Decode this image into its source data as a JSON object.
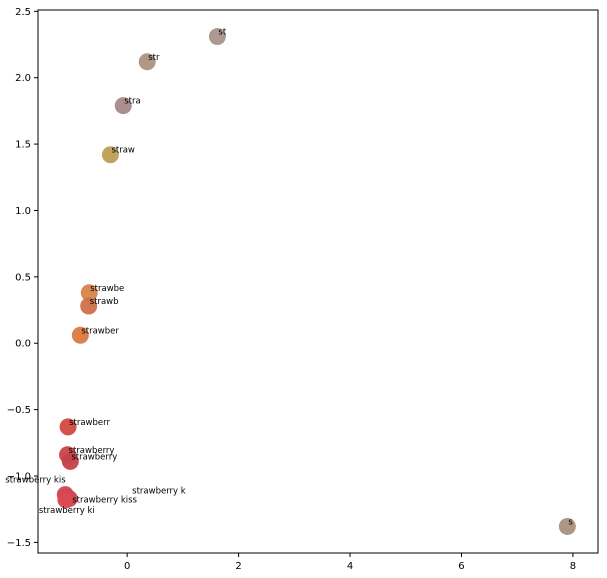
{
  "chart_data": {
    "type": "scatter",
    "title": "",
    "xlabel": "",
    "ylabel": "",
    "xlim": [
      -1.6,
      8.45
    ],
    "ylim": [
      -1.58,
      2.51
    ],
    "xticks": [
      0,
      2,
      4,
      6,
      8
    ],
    "yticks": [
      -1.5,
      -1.0,
      -0.5,
      0.0,
      0.5,
      1.0,
      1.5,
      2.0,
      2.5
    ],
    "xtick_labels": [
      "0",
      "2",
      "4",
      "6",
      "8"
    ],
    "ytick_labels": [
      "−1.5",
      "−1.0",
      "−0.5",
      "0.0",
      "0.5",
      "1.0",
      "1.5",
      "2.0",
      "2.5"
    ],
    "grid": false,
    "points": [
      {
        "label": "s",
        "x": 7.9,
        "y": -1.38,
        "color": "#a89080"
      },
      {
        "label": "st",
        "x": 1.62,
        "y": 2.31,
        "color": "#a8948a"
      },
      {
        "label": "str",
        "x": 0.36,
        "y": 2.12,
        "color": "#ac9182"
      },
      {
        "label": "stra",
        "x": -0.07,
        "y": 1.79,
        "color": "#a6898a"
      },
      {
        "label": "straw",
        "x": -0.3,
        "y": 1.42,
        "color": "#bf9e54"
      },
      {
        "label": "strawbe",
        "x": -0.68,
        "y": 0.38,
        "color": "#d7844a"
      },
      {
        "label": "strawb",
        "x": -0.69,
        "y": 0.28,
        "color": "#d0704a"
      },
      {
        "label": "strawber",
        "x": -0.84,
        "y": 0.06,
        "color": "#db7a40"
      },
      {
        "label": "strawberr",
        "x": -1.06,
        "y": -0.63,
        "color": "#d04a40"
      },
      {
        "label": "strawberry",
        "x": -1.07,
        "y": -0.84,
        "color": "#c84648"
      },
      {
        "label": "strawberry ",
        "x": -1.02,
        "y": -0.89,
        "color": "#c64048"
      },
      {
        "label": "strawberry k",
        "x": -1.08,
        "y": -1.16,
        "color": "#d2434c"
      },
      {
        "label": "strawberry kis",
        "x": -1.11,
        "y": -1.14,
        "color": "#d24450"
      },
      {
        "label": "strawberry kiss",
        "x": -1.04,
        "y": -1.17,
        "color": "#cd4858"
      },
      {
        "label": "strawberry ki",
        "x": -1.1,
        "y": -1.18,
        "color": "#d94a52"
      }
    ],
    "label_offsets_note": ""
  },
  "colors": {
    "axes": "#000000",
    "background": "#ffffff"
  }
}
